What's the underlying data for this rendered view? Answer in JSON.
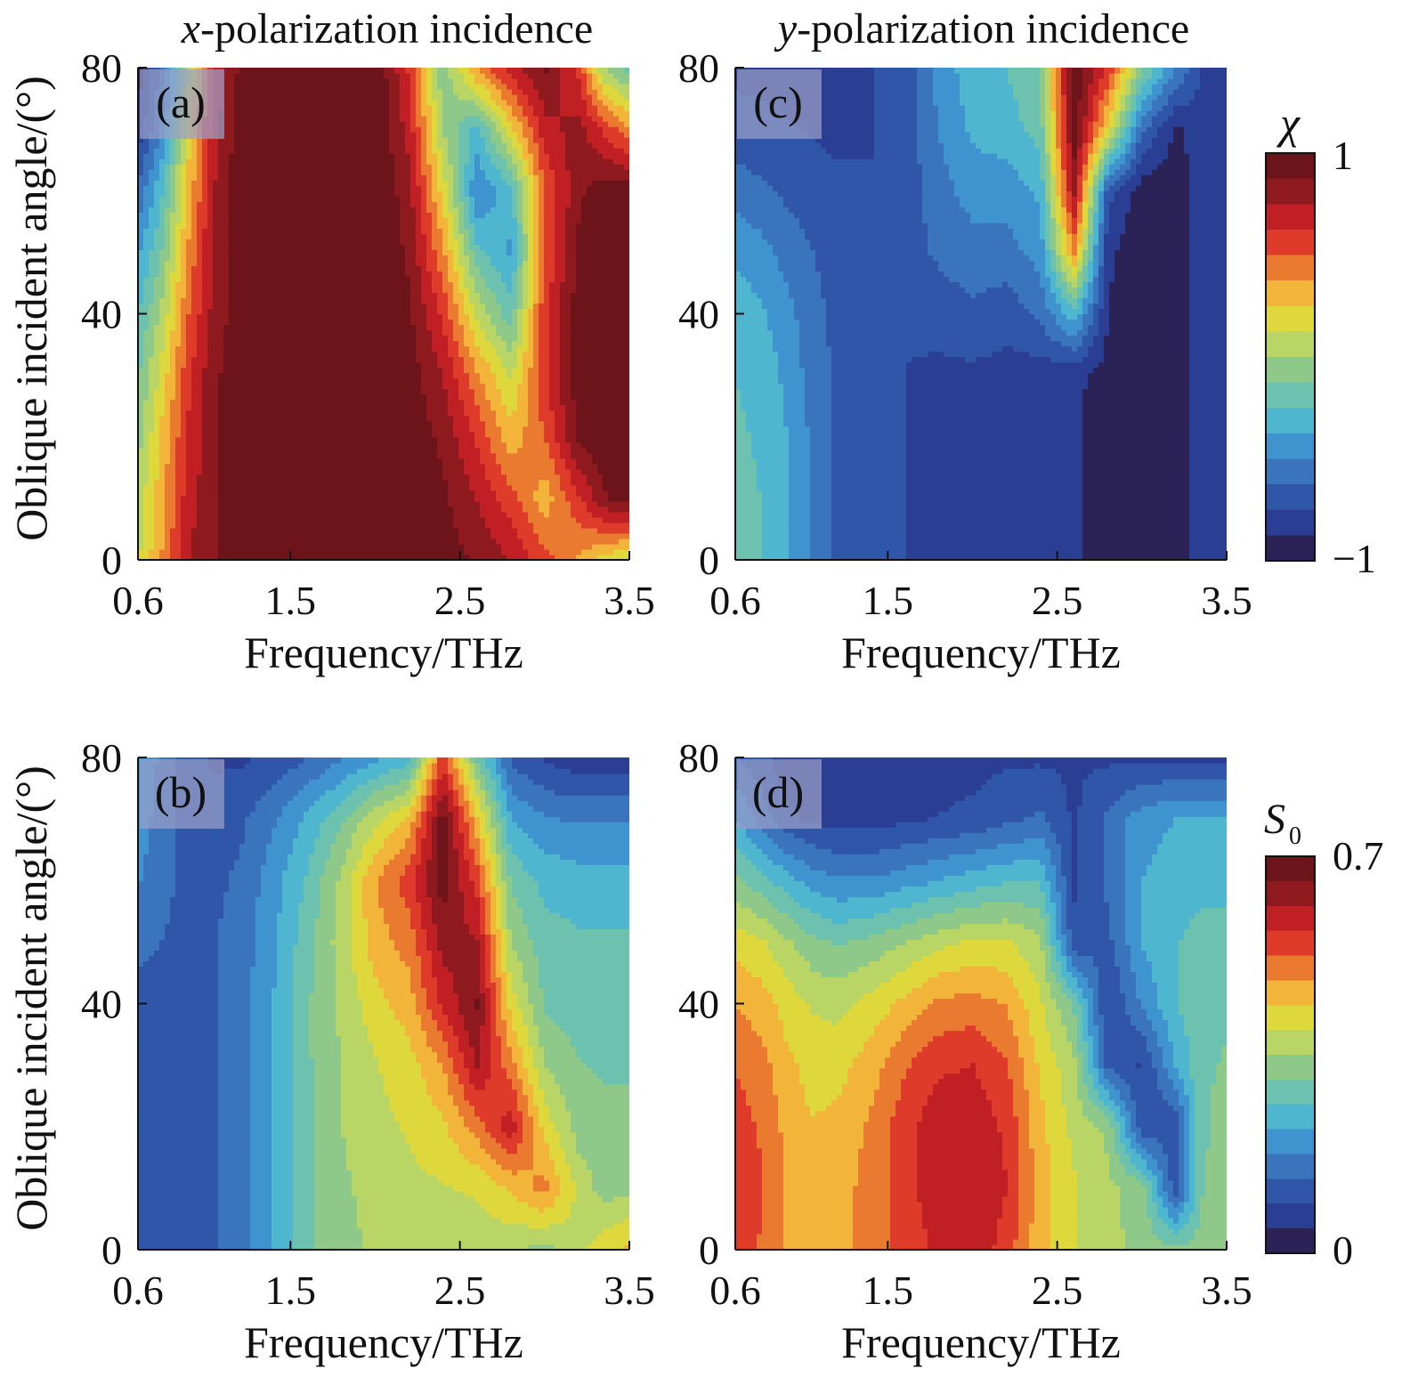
{
  "column_titles": [
    {
      "var": "x",
      "rest": "-polarization incidence"
    },
    {
      "var": "y",
      "rest": "-polarization incidence"
    }
  ],
  "colorbars": [
    {
      "symbol": "χ",
      "sub": "",
      "max_label": "1",
      "min_label": "−1"
    },
    {
      "symbol": "S",
      "sub": "0",
      "max_label": "0.7",
      "min_label": "0"
    }
  ],
  "colormap": [
    "#2b2357",
    "#2a3f94",
    "#2f56a8",
    "#3a74bd",
    "#3f94cf",
    "#4fb6cf",
    "#6cc2ae",
    "#8ec98a",
    "#b9d566",
    "#dfd83c",
    "#f2b53a",
    "#ea7a30",
    "#de3b2a",
    "#c01f24",
    "#8e1a1f",
    "#6d141a"
  ],
  "chart_data": [
    {
      "type": "heatmap",
      "panel": "(a)",
      "xlabel": "Frequency/THz",
      "ylabel": "Oblique incident angle/(°)",
      "x_ticks": [
        "0.6",
        "1.5",
        "2.5",
        "3.5"
      ],
      "y_ticks": [
        "0",
        "40",
        "80"
      ],
      "xlim": [
        0.6,
        3.5
      ],
      "ylim": [
        0,
        80
      ],
      "colorbar": "χ",
      "value_range": [
        -1,
        1
      ],
      "x": [
        0.6,
        0.75,
        0.9,
        1.05,
        1.2,
        1.4,
        1.6,
        1.8,
        2.0,
        2.2,
        2.4,
        2.6,
        2.8,
        3.0,
        3.2,
        3.35,
        3.5
      ],
      "y": [
        0,
        10,
        20,
        30,
        40,
        50,
        60,
        70,
        80
      ],
      "z": [
        [
          0.1,
          0.4,
          0.75,
          0.85,
          0.95,
          1.0,
          1.0,
          1.0,
          1.0,
          1.0,
          0.95,
          0.85,
          0.75,
          0.55,
          0.35,
          0.2,
          0.1
        ],
        [
          0.05,
          0.35,
          0.7,
          0.85,
          0.95,
          1.0,
          1.0,
          1.0,
          1.0,
          1.0,
          0.9,
          0.75,
          0.55,
          0.3,
          0.6,
          0.85,
          0.95
        ],
        [
          -0.05,
          0.3,
          0.65,
          0.85,
          0.95,
          1.0,
          1.0,
          1.0,
          1.0,
          0.95,
          0.85,
          0.6,
          0.3,
          0.5,
          0.9,
          1.0,
          1.0
        ],
        [
          -0.15,
          0.2,
          0.6,
          0.85,
          0.95,
          1.0,
          1.0,
          1.0,
          1.0,
          0.95,
          0.75,
          0.4,
          0.1,
          0.6,
          0.95,
          1.0,
          1.0
        ],
        [
          -0.25,
          0.05,
          0.5,
          0.8,
          0.95,
          1.0,
          1.0,
          1.0,
          1.0,
          0.9,
          0.6,
          0.1,
          -0.2,
          0.6,
          0.95,
          1.0,
          1.0
        ],
        [
          -0.4,
          -0.1,
          0.4,
          0.8,
          0.95,
          1.0,
          1.0,
          1.0,
          1.0,
          0.85,
          0.4,
          -0.2,
          -0.4,
          0.5,
          0.9,
          1.0,
          1.0
        ],
        [
          -0.6,
          -0.25,
          0.3,
          0.75,
          0.95,
          1.0,
          1.0,
          1.0,
          1.0,
          0.8,
          0.2,
          -0.5,
          -0.3,
          0.5,
          0.85,
          0.95,
          0.95
        ],
        [
          -0.85,
          -0.45,
          0.2,
          0.7,
          0.95,
          1.0,
          1.0,
          1.0,
          1.0,
          0.7,
          0.0,
          -0.3,
          0.2,
          0.7,
          0.8,
          0.6,
          0.4
        ],
        [
          -0.95,
          -0.55,
          0.1,
          0.65,
          0.9,
          1.0,
          1.0,
          1.0,
          1.0,
          0.6,
          -0.1,
          0.4,
          0.7,
          0.9,
          0.6,
          0.0,
          -0.2
        ]
      ]
    },
    {
      "type": "heatmap",
      "panel": "(b)",
      "xlabel": "Frequency/THz",
      "ylabel": "Oblique incident angle/(°)",
      "x_ticks": [
        "0.6",
        "1.5",
        "2.5",
        "3.5"
      ],
      "y_ticks": [
        "0",
        "40",
        "80"
      ],
      "xlim": [
        0.6,
        3.5
      ],
      "ylim": [
        0,
        80
      ],
      "colorbar": "S0",
      "value_range": [
        0,
        0.7
      ],
      "x": [
        0.6,
        0.75,
        0.9,
        1.05,
        1.2,
        1.4,
        1.6,
        1.8,
        2.0,
        2.2,
        2.4,
        2.6,
        2.8,
        3.0,
        3.2,
        3.35,
        3.5
      ],
      "y": [
        0,
        10,
        20,
        30,
        40,
        50,
        60,
        70,
        80
      ],
      "z": [
        [
          0.12,
          0.12,
          0.12,
          0.13,
          0.15,
          0.22,
          0.3,
          0.33,
          0.36,
          0.37,
          0.37,
          0.37,
          0.36,
          0.33,
          0.38,
          0.42,
          0.45
        ],
        [
          0.12,
          0.12,
          0.12,
          0.13,
          0.15,
          0.22,
          0.3,
          0.34,
          0.37,
          0.38,
          0.39,
          0.4,
          0.44,
          0.5,
          0.38,
          0.33,
          0.34
        ],
        [
          0.12,
          0.12,
          0.12,
          0.13,
          0.15,
          0.22,
          0.3,
          0.35,
          0.38,
          0.4,
          0.43,
          0.5,
          0.6,
          0.42,
          0.33,
          0.32,
          0.32
        ],
        [
          0.12,
          0.12,
          0.12,
          0.13,
          0.15,
          0.22,
          0.3,
          0.35,
          0.39,
          0.42,
          0.48,
          0.62,
          0.5,
          0.35,
          0.31,
          0.3,
          0.3
        ],
        [
          0.12,
          0.12,
          0.12,
          0.13,
          0.15,
          0.22,
          0.3,
          0.36,
          0.42,
          0.46,
          0.58,
          0.66,
          0.42,
          0.3,
          0.28,
          0.28,
          0.28
        ],
        [
          0.14,
          0.13,
          0.12,
          0.13,
          0.15,
          0.21,
          0.29,
          0.37,
          0.46,
          0.5,
          0.63,
          0.62,
          0.35,
          0.28,
          0.27,
          0.27,
          0.27
        ],
        [
          0.18,
          0.14,
          0.12,
          0.12,
          0.14,
          0.2,
          0.27,
          0.36,
          0.48,
          0.55,
          0.68,
          0.55,
          0.3,
          0.25,
          0.24,
          0.24,
          0.24
        ],
        [
          0.2,
          0.15,
          0.11,
          0.11,
          0.12,
          0.17,
          0.23,
          0.3,
          0.38,
          0.45,
          0.68,
          0.45,
          0.22,
          0.18,
          0.17,
          0.17,
          0.17
        ],
        [
          0.22,
          0.16,
          0.1,
          0.08,
          0.08,
          0.1,
          0.13,
          0.17,
          0.21,
          0.24,
          0.55,
          0.3,
          0.12,
          0.08,
          0.06,
          0.06,
          0.06
        ]
      ]
    },
    {
      "type": "heatmap",
      "panel": "(c)",
      "xlabel": "Frequency/THz",
      "ylabel": "",
      "x_ticks": [
        "0.6",
        "1.5",
        "2.5",
        "3.5"
      ],
      "y_ticks": [
        "0",
        "40",
        "80"
      ],
      "xlim": [
        0.6,
        3.5
      ],
      "ylim": [
        0,
        80
      ],
      "colorbar": "χ",
      "value_range": [
        -1,
        1
      ],
      "x": [
        0.6,
        0.75,
        0.9,
        1.05,
        1.2,
        1.4,
        1.6,
        1.8,
        2.0,
        2.2,
        2.4,
        2.6,
        2.8,
        3.0,
        3.2,
        3.35,
        3.5
      ],
      "y": [
        0,
        10,
        20,
        30,
        40,
        50,
        60,
        70,
        80
      ],
      "z": [
        [
          -0.2,
          -0.25,
          -0.35,
          -0.5,
          -0.65,
          -0.72,
          -0.75,
          -0.78,
          -0.78,
          -0.8,
          -0.82,
          -0.85,
          -0.95,
          -0.97,
          -0.97,
          -0.8,
          -0.8
        ],
        [
          -0.2,
          -0.25,
          -0.35,
          -0.5,
          -0.65,
          -0.72,
          -0.75,
          -0.78,
          -0.78,
          -0.8,
          -0.82,
          -0.85,
          -0.95,
          -0.97,
          -0.97,
          -0.8,
          -0.8
        ],
        [
          -0.22,
          -0.27,
          -0.37,
          -0.52,
          -0.65,
          -0.72,
          -0.75,
          -0.78,
          -0.78,
          -0.8,
          -0.82,
          -0.85,
          -0.95,
          -0.97,
          -0.97,
          -0.8,
          -0.8
        ],
        [
          -0.25,
          -0.3,
          -0.4,
          -0.55,
          -0.65,
          -0.72,
          -0.75,
          -0.78,
          -0.78,
          -0.8,
          -0.82,
          -0.85,
          -0.92,
          -0.97,
          -0.97,
          -0.8,
          -0.8
        ],
        [
          -0.3,
          -0.35,
          -0.45,
          -0.58,
          -0.66,
          -0.72,
          -0.74,
          -0.7,
          -0.65,
          -0.7,
          -0.6,
          -0.3,
          -0.88,
          -0.97,
          -0.97,
          -0.8,
          -0.8
        ],
        [
          -0.4,
          -0.45,
          -0.55,
          -0.62,
          -0.68,
          -0.72,
          -0.7,
          -0.6,
          -0.55,
          -0.55,
          -0.45,
          0.4,
          -0.85,
          -0.97,
          -0.97,
          -0.8,
          -0.8
        ],
        [
          -0.55,
          -0.6,
          -0.65,
          -0.68,
          -0.72,
          -0.74,
          -0.7,
          -0.55,
          -0.45,
          -0.45,
          -0.35,
          0.8,
          -0.7,
          -0.95,
          -0.97,
          -0.8,
          -0.8
        ],
        [
          -0.7,
          -0.72,
          -0.74,
          -0.76,
          -0.78,
          -0.76,
          -0.7,
          -0.5,
          -0.35,
          -0.3,
          -0.2,
          0.95,
          0.2,
          -0.6,
          -0.9,
          -0.8,
          -0.8
        ],
        [
          -0.78,
          -0.78,
          -0.78,
          -0.78,
          -0.78,
          -0.76,
          -0.7,
          -0.45,
          -0.3,
          -0.25,
          -0.15,
          1.0,
          0.6,
          -0.1,
          -0.5,
          -0.75,
          -0.8
        ]
      ]
    },
    {
      "type": "heatmap",
      "panel": "(d)",
      "xlabel": "Frequency/THz",
      "ylabel": "",
      "x_ticks": [
        "0.6",
        "1.5",
        "2.5",
        "3.5"
      ],
      "y_ticks": [
        "0",
        "40",
        "80"
      ],
      "xlim": [
        0.6,
        3.5
      ],
      "ylim": [
        0,
        80
      ],
      "colorbar": "S0",
      "value_range": [
        0,
        0.7
      ],
      "x": [
        0.6,
        0.75,
        0.9,
        1.05,
        1.2,
        1.4,
        1.6,
        1.8,
        2.0,
        2.2,
        2.4,
        2.6,
        2.8,
        3.0,
        3.2,
        3.35,
        3.5
      ],
      "y": [
        0,
        10,
        20,
        30,
        40,
        50,
        60,
        70,
        80
      ],
      "z": [
        [
          0.56,
          0.52,
          0.48,
          0.45,
          0.46,
          0.5,
          0.54,
          0.58,
          0.6,
          0.55,
          0.45,
          0.4,
          0.36,
          0.34,
          0.32,
          0.33,
          0.33
        ],
        [
          0.57,
          0.53,
          0.48,
          0.45,
          0.46,
          0.5,
          0.55,
          0.6,
          0.61,
          0.57,
          0.46,
          0.4,
          0.36,
          0.33,
          0.1,
          0.3,
          0.33
        ],
        [
          0.55,
          0.52,
          0.47,
          0.44,
          0.45,
          0.49,
          0.55,
          0.6,
          0.6,
          0.56,
          0.45,
          0.38,
          0.34,
          0.1,
          0.1,
          0.3,
          0.32
        ],
        [
          0.52,
          0.5,
          0.45,
          0.42,
          0.42,
          0.46,
          0.52,
          0.56,
          0.57,
          0.53,
          0.43,
          0.36,
          0.12,
          0.08,
          0.22,
          0.3,
          0.31
        ],
        [
          0.48,
          0.46,
          0.42,
          0.39,
          0.38,
          0.41,
          0.45,
          0.49,
          0.5,
          0.48,
          0.4,
          0.3,
          0.08,
          0.18,
          0.26,
          0.29,
          0.3
        ],
        [
          0.42,
          0.4,
          0.36,
          0.32,
          0.3,
          0.32,
          0.35,
          0.38,
          0.4,
          0.4,
          0.36,
          0.1,
          0.12,
          0.22,
          0.26,
          0.28,
          0.28
        ],
        [
          0.32,
          0.28,
          0.24,
          0.2,
          0.18,
          0.18,
          0.2,
          0.22,
          0.24,
          0.26,
          0.26,
          0.08,
          0.14,
          0.22,
          0.24,
          0.25,
          0.25
        ],
        [
          0.22,
          0.16,
          0.1,
          0.08,
          0.07,
          0.07,
          0.08,
          0.09,
          0.1,
          0.12,
          0.14,
          0.08,
          0.14,
          0.2,
          0.22,
          0.22,
          0.22
        ],
        [
          0.14,
          0.1,
          0.06,
          0.05,
          0.05,
          0.05,
          0.05,
          0.06,
          0.07,
          0.08,
          0.08,
          0.08,
          0.08,
          0.08,
          0.08,
          0.08,
          0.08
        ]
      ]
    }
  ]
}
